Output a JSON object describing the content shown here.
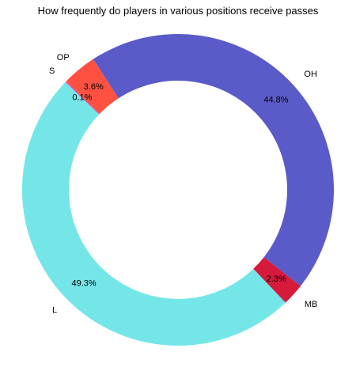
{
  "chart_data": {
    "type": "pie",
    "title": "How frequently do players in various positions receive passes",
    "donut": true,
    "start_angle_degrees": 123,
    "direction": "clockwise",
    "slices": [
      {
        "label": "OH",
        "value": 44.8,
        "value_label": "44.8%",
        "color": "#5a5ac8"
      },
      {
        "label": "MB",
        "value": 2.3,
        "value_label": "2.3%",
        "color": "#d51a3c"
      },
      {
        "label": "L",
        "value": 49.3,
        "value_label": "49.3%",
        "color": "#74e6e8"
      },
      {
        "label": "S",
        "value": 0.1,
        "value_label": "0.1%",
        "color": "#d35bd9"
      },
      {
        "label": "OP",
        "value": 3.6,
        "value_label": "3.6%",
        "color": "#ff5142"
      }
    ]
  }
}
